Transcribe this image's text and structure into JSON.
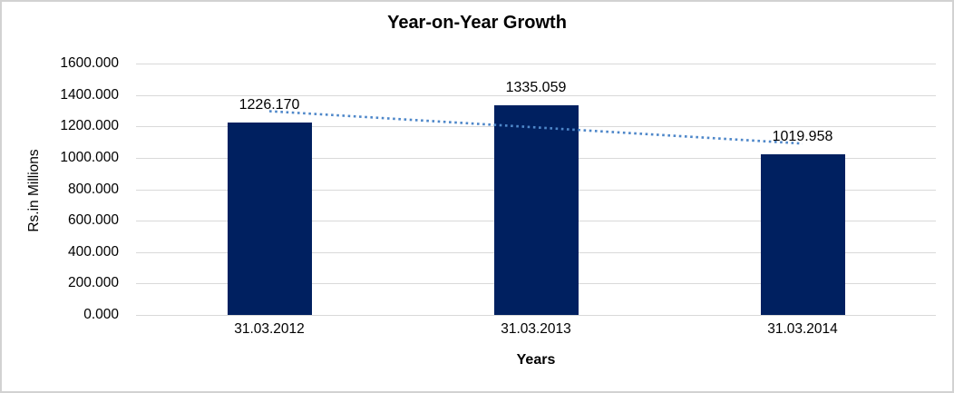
{
  "chart_data": {
    "type": "bar",
    "title": "Year-on-Year Growth",
    "xlabel": "Years",
    "ylabel": "Rs.in Millions",
    "categories": [
      "31.03.2012",
      "31.03.2013",
      "31.03.2014"
    ],
    "values": [
      1226.17,
      1335.059,
      1019.958
    ],
    "data_labels": [
      "1226.170",
      "1335.059",
      "1019.958"
    ],
    "ylim": [
      0,
      1600
    ],
    "ytick_step": 200,
    "ytick_labels": [
      "0.000",
      "200.000",
      "400.000",
      "600.000",
      "800.000",
      "1000.000",
      "1200.000",
      "1400.000",
      "1600.000"
    ],
    "grid": true,
    "legend": "none",
    "trendline": {
      "kind": "linear",
      "line_style": "dotted"
    },
    "colors": {
      "bar": "#002060",
      "trendline": "#4e87c9",
      "gridline": "#d9d9d9",
      "text": "#000000",
      "border": "#d2d2d2"
    }
  }
}
